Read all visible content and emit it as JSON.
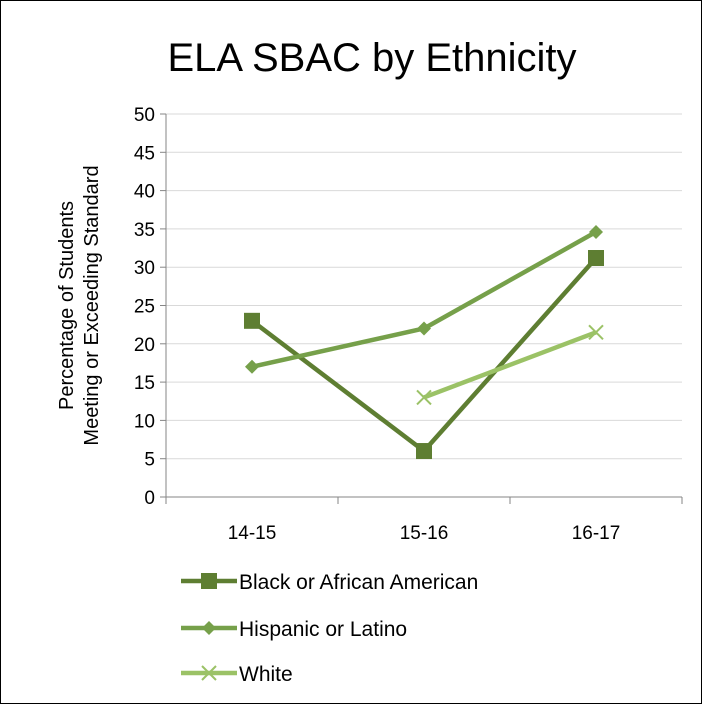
{
  "chart_data": {
    "type": "line",
    "title": "ELA SBAC by Ethnicity",
    "ylabel_lines": [
      "Percentage of Students",
      "Meeting or Exceeding Standard"
    ],
    "xlabel": "",
    "categories": [
      "14-15",
      "15-16",
      "16-17"
    ],
    "ylim": [
      0,
      50
    ],
    "yticks": [
      0,
      5,
      10,
      15,
      20,
      25,
      30,
      35,
      40,
      45,
      50
    ],
    "grid": true,
    "legend_position": "bottom",
    "series": [
      {
        "name": "Black or African American",
        "values": [
          23,
          6,
          31.2
        ],
        "color": "#5E7E32",
        "marker": "square"
      },
      {
        "name": "Hispanic or Latino",
        "values": [
          17,
          22,
          34.6
        ],
        "color": "#76A04A",
        "marker": "diamond"
      },
      {
        "name": "White",
        "values": [
          null,
          13,
          21.5
        ],
        "color": "#9BC266",
        "marker": "x"
      }
    ]
  }
}
